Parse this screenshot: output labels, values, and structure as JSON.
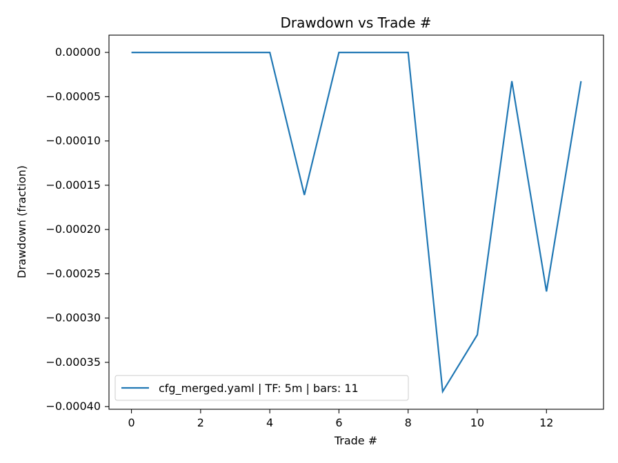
{
  "chart_data": {
    "type": "line",
    "title": "Drawdown vs Trade #",
    "xlabel": "Trade #",
    "ylabel": "Drawdown (fraction)",
    "xlim": [
      -0.65,
      13.65
    ],
    "ylim": [
      -0.000403,
      1.95e-05
    ],
    "xticks": [
      0,
      2,
      4,
      6,
      8,
      10,
      12
    ],
    "yticks": [
      0.0,
      -5e-05,
      -0.0001,
      -0.00015,
      -0.0002,
      -0.00025,
      -0.0003,
      -0.00035,
      -0.0004
    ],
    "ytick_labels": [
      "0.00000",
      "−0.00005",
      "−0.00010",
      "−0.00015",
      "−0.00020",
      "−0.00025",
      "−0.00030",
      "−0.00035",
      "−0.00040"
    ],
    "grid": false,
    "legend_position": "lower-left",
    "series": [
      {
        "name": "cfg_merged.yaml | TF: 5m | bars: 11",
        "color": "#1f77b4",
        "x": [
          0,
          1,
          2,
          3,
          4,
          5,
          6,
          7,
          8,
          9,
          10,
          11,
          12,
          13
        ],
        "y": [
          0.0,
          0.0,
          0.0,
          0.0,
          0.0,
          -0.000161,
          0.0,
          0.0,
          0.0,
          -0.000383,
          -0.000319,
          -3.25e-05,
          -0.00027,
          -3.25e-05
        ]
      }
    ]
  }
}
